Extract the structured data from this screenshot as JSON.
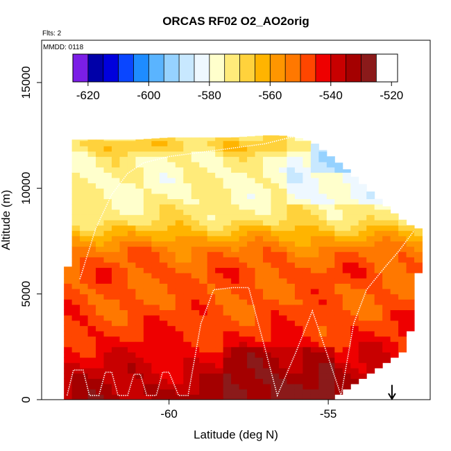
{
  "chart_data": {
    "type": "heatmap",
    "title": "ORCAS RF02 O2_AO2orig",
    "corner_note": "Flts: 2",
    "mmdd_label": "MMDD: 0118",
    "xlabel": "Latitude (deg N)",
    "ylabel": "Altitude (m)",
    "xlim": [
      -64.0,
      -51.8
    ],
    "ylim": [
      0,
      17000
    ],
    "x_ticks": [
      -60,
      -55
    ],
    "x_tick_labels": [
      "-60",
      "-55"
    ],
    "y_ticks": [
      0,
      5000,
      10000,
      15000
    ],
    "y_tick_labels": [
      "0",
      "5000",
      "10000",
      "15000"
    ],
    "colorbar": {
      "vmin": -625,
      "vmax": -518,
      "ticks": [
        -620,
        -600,
        -580,
        -560,
        -540,
        -520
      ],
      "tick_labels": [
        "-620",
        "-600",
        "-580",
        "-560",
        "-540",
        "-520"
      ],
      "colors": [
        "#7b1ee6",
        "#0000a8",
        "#0000dd",
        "#0a46ff",
        "#1e8cff",
        "#5ab4ff",
        "#96d2ff",
        "#c8e8ff",
        "#eef8ff",
        "#ffffcc",
        "#ffeb7a",
        "#ffd23c",
        "#ffb400",
        "#ff9600",
        "#ff7800",
        "#ff4600",
        "#ee0000",
        "#c80000",
        "#a40000",
        "#8b1a1a"
      ],
      "bin_edges": [
        -625,
        -620,
        -615,
        -610,
        -605,
        -600,
        -595,
        -590,
        -585,
        -580,
        -575,
        -570,
        -565,
        -560,
        -555,
        -550,
        -545,
        -540,
        -535,
        -530,
        -525,
        -518
      ]
    },
    "grid": {
      "lat_min": -63.3,
      "lat_step": 0.25,
      "alt_step": 250,
      "envelope": [
        [
          -63.3,
          0,
          2000
        ],
        [
          -63.0,
          0,
          12300
        ],
        [
          -62.0,
          0,
          12300
        ],
        [
          -61.0,
          0,
          12300
        ],
        [
          -60.0,
          0,
          12400
        ],
        [
          -59.0,
          0,
          12400
        ],
        [
          -58.0,
          0,
          12400
        ],
        [
          -57.0,
          0,
          12500
        ],
        [
          -56.5,
          0,
          12500
        ],
        [
          -56.0,
          0,
          12400
        ],
        [
          -55.5,
          0,
          12200
        ],
        [
          -55.0,
          0,
          11600
        ],
        [
          -54.5,
          500,
          11000
        ],
        [
          -54.0,
          1000,
          10300
        ],
        [
          -53.5,
          1500,
          9600
        ],
        [
          -53.0,
          2000,
          8900
        ],
        [
          -52.5,
          2600,
          8300
        ],
        [
          -52.2,
          6000,
          8100
        ]
      ],
      "profile": [
        [
          0,
          -533
        ],
        [
          1000,
          -537
        ],
        [
          2000,
          -541
        ],
        [
          3000,
          -545
        ],
        [
          4000,
          -548
        ],
        [
          5000,
          -550
        ],
        [
          6000,
          -548
        ],
        [
          7000,
          -552
        ],
        [
          7800,
          -562
        ],
        [
          8500,
          -571
        ],
        [
          9500,
          -575
        ],
        [
          10500,
          -576
        ],
        [
          11500,
          -574
        ],
        [
          12000,
          -566
        ],
        [
          12500,
          -572
        ]
      ]
    },
    "annotations": {
      "arrow_latitude": -53.0,
      "arrow_altitude_top": 700,
      "arrow_altitude_bottom": 0
    },
    "flight_track": [
      [
        -63.2,
        200
      ],
      [
        -63.0,
        1400
      ],
      [
        -62.7,
        1400
      ],
      [
        -62.5,
        200
      ],
      [
        -62.2,
        200
      ],
      [
        -62.0,
        1300
      ],
      [
        -61.8,
        1300
      ],
      [
        -61.6,
        200
      ],
      [
        -61.3,
        200
      ],
      [
        -61.1,
        1200
      ],
      [
        -60.9,
        1200
      ],
      [
        -60.7,
        200
      ],
      [
        -60.4,
        200
      ],
      [
        -60.2,
        1300
      ],
      [
        -60.0,
        1300
      ],
      [
        -59.7,
        200
      ],
      [
        -59.4,
        200
      ],
      [
        -59.0,
        3600
      ],
      [
        -58.6,
        5200
      ],
      [
        -58.0,
        5300
      ],
      [
        -57.5,
        5300
      ],
      [
        -57.0,
        2500
      ],
      [
        -56.6,
        200
      ],
      [
        -56.0,
        2300
      ],
      [
        -55.5,
        4200
      ],
      [
        -55.0,
        2000
      ],
      [
        -54.6,
        200
      ],
      [
        -54.2,
        3600
      ],
      [
        -53.8,
        5200
      ],
      [
        -53.2,
        6300
      ],
      [
        -52.8,
        7000
      ],
      [
        -52.5,
        7600
      ],
      [
        -52.3,
        8000
      ]
    ],
    "flight_track_2": [
      [
        -62.8,
        5700
      ],
      [
        -62.3,
        8100
      ],
      [
        -61.8,
        9700
      ],
      [
        -61.3,
        10700
      ],
      [
        -60.8,
        11200
      ],
      [
        -60.0,
        11500
      ],
      [
        -59.0,
        11700
      ],
      [
        -58.0,
        11900
      ],
      [
        -57.0,
        12100
      ],
      [
        -56.2,
        12400
      ],
      [
        -55.6,
        12500
      ],
      [
        -55.2,
        12400
      ],
      [
        -54.8,
        12000
      ]
    ]
  }
}
